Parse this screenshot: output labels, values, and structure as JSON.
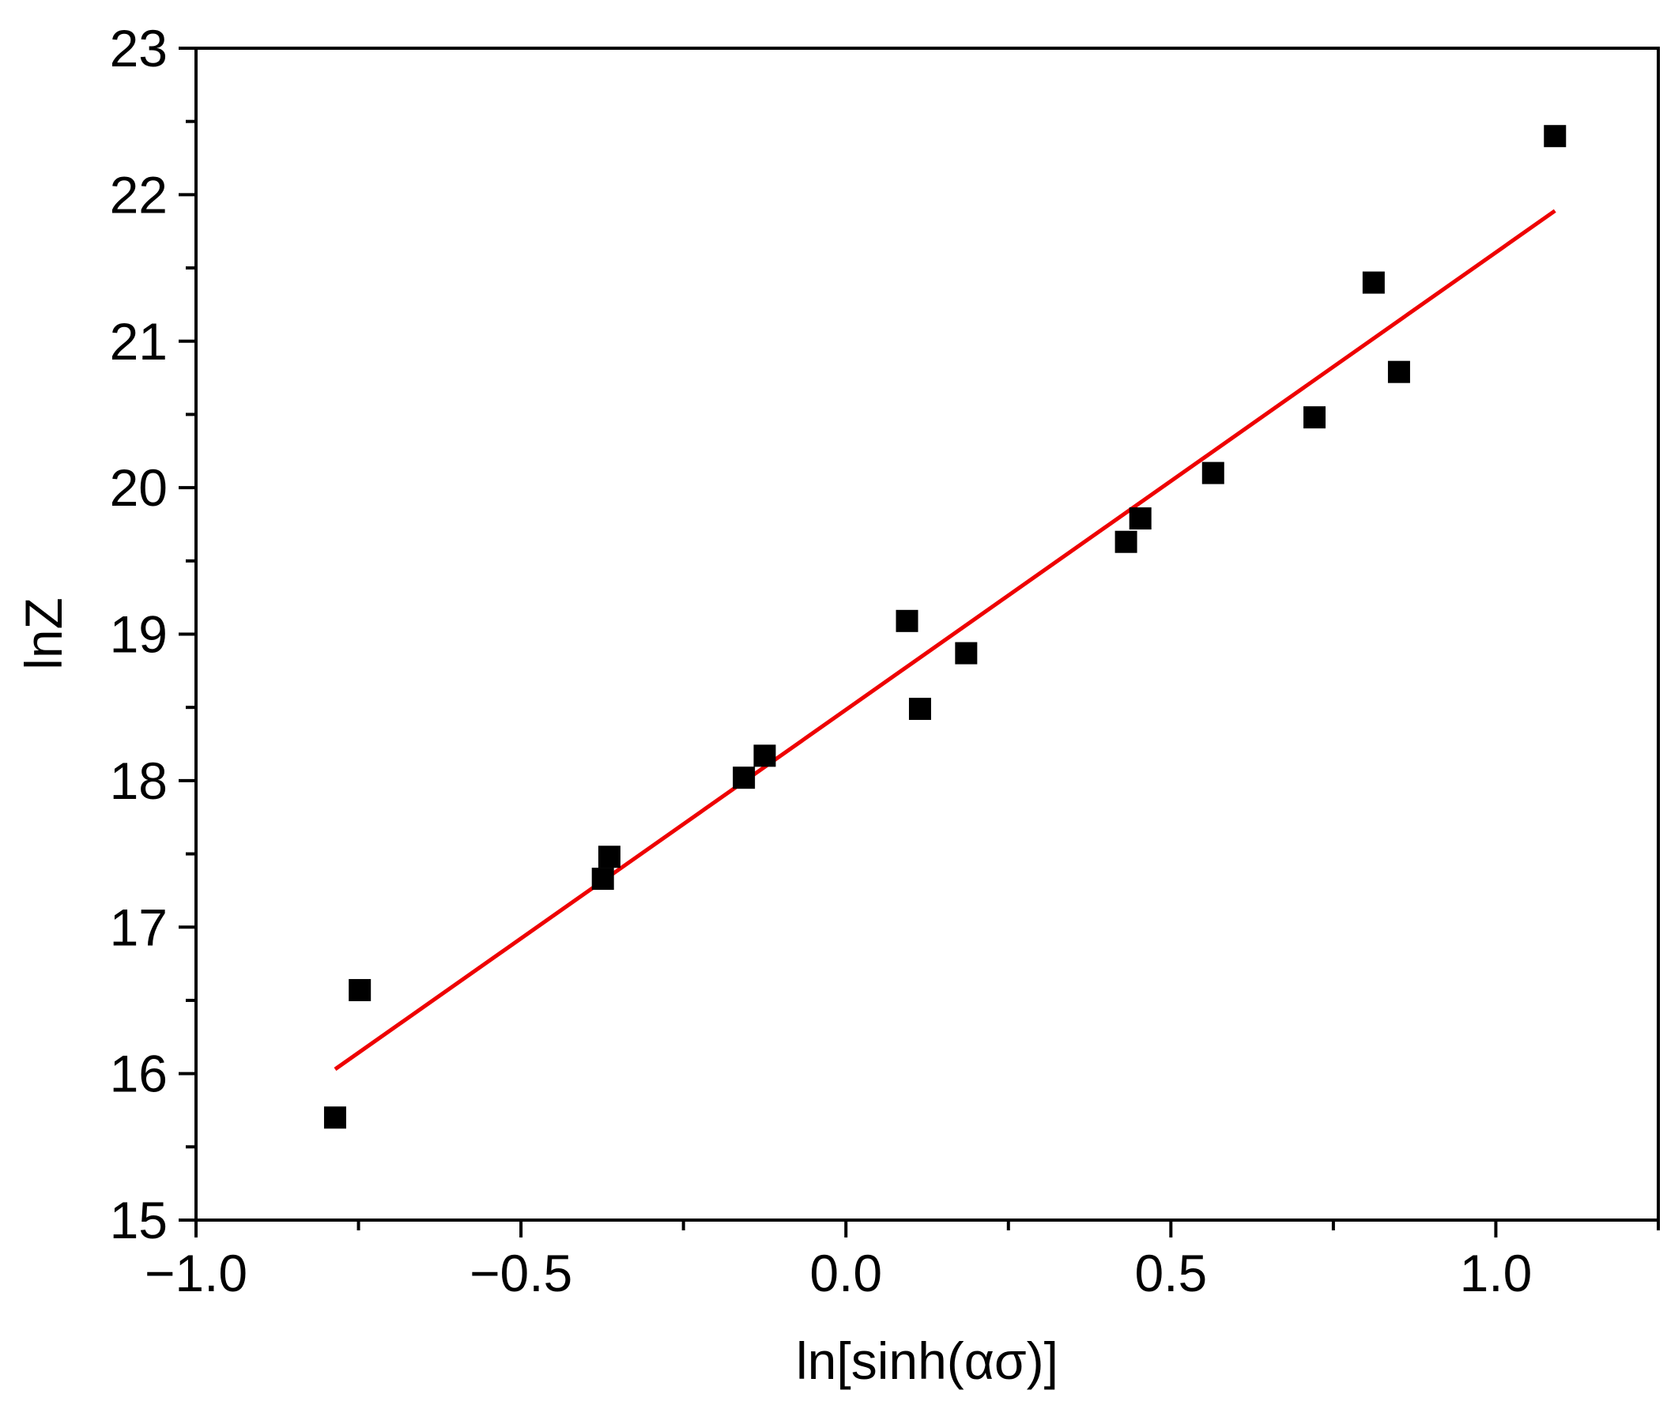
{
  "chart_data": {
    "type": "scatter",
    "title": "",
    "xlabel": "ln[sinh(ασ)]",
    "ylabel": "lnZ",
    "xlim": [
      -1.0,
      1.25
    ],
    "ylim": [
      15,
      23
    ],
    "x_ticks": [
      -1.0,
      -0.5,
      0.0,
      0.5,
      1.0
    ],
    "x_tick_labels": [
      "−1.0",
      "−0.5",
      "0.0",
      "0.5",
      "1.0"
    ],
    "y_ticks": [
      15,
      16,
      17,
      18,
      19,
      20,
      21,
      22,
      23
    ],
    "y_tick_labels": [
      "15",
      "16",
      "17",
      "18",
      "19",
      "20",
      "21",
      "22",
      "23"
    ],
    "grid": false,
    "legend": "none",
    "series": [
      {
        "kind": "scatter",
        "marker": "square",
        "color": "#000000",
        "points": [
          {
            "x": -0.786,
            "y": 15.7
          },
          {
            "x": -0.748,
            "y": 16.57
          },
          {
            "x": -0.374,
            "y": 17.33
          },
          {
            "x": -0.364,
            "y": 17.48
          },
          {
            "x": -0.157,
            "y": 18.02
          },
          {
            "x": -0.125,
            "y": 18.17
          },
          {
            "x": 0.094,
            "y": 19.09
          },
          {
            "x": 0.114,
            "y": 18.49
          },
          {
            "x": 0.185,
            "y": 18.87
          },
          {
            "x": 0.431,
            "y": 19.63
          },
          {
            "x": 0.453,
            "y": 19.79
          },
          {
            "x": 0.565,
            "y": 20.1
          },
          {
            "x": 0.721,
            "y": 20.48
          },
          {
            "x": 0.812,
            "y": 21.4
          },
          {
            "x": 0.851,
            "y": 20.79
          },
          {
            "x": 1.091,
            "y": 22.4
          }
        ]
      },
      {
        "kind": "line",
        "color": "#ee0000",
        "points": [
          {
            "x": -0.786,
            "y": 16.03
          },
          {
            "x": 1.091,
            "y": 21.89
          }
        ]
      }
    ]
  }
}
